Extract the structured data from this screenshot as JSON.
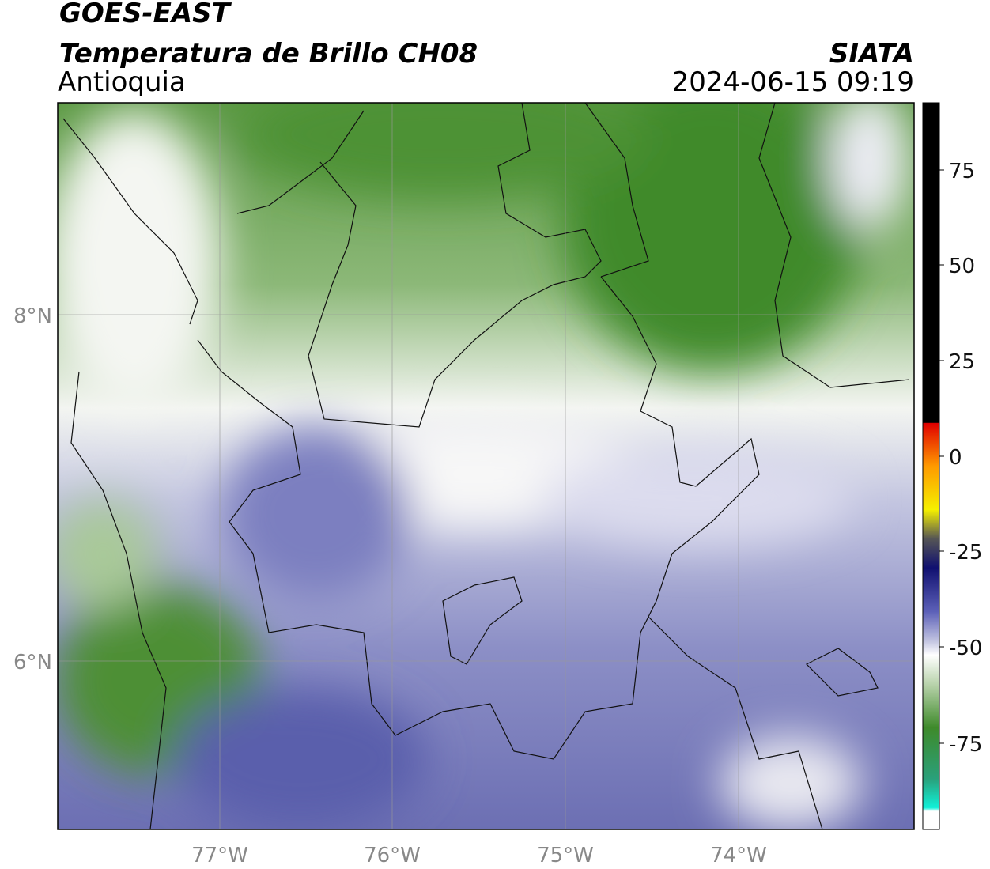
{
  "header": {
    "title": "GOES-EAST",
    "subtitle": "Temperatura de Brillo CH08",
    "region": "Antioquia",
    "source": "SIATA",
    "datetime": "2024-06-15 09:19"
  },
  "map": {
    "lat_labels": [
      "8°N",
      "6°N"
    ],
    "lon_labels": [
      "77°W",
      "76°W",
      "75°W",
      "74°W"
    ]
  },
  "colorbar": {
    "ticks": [
      75,
      50,
      25,
      0,
      -25,
      -50,
      -75
    ]
  }
}
